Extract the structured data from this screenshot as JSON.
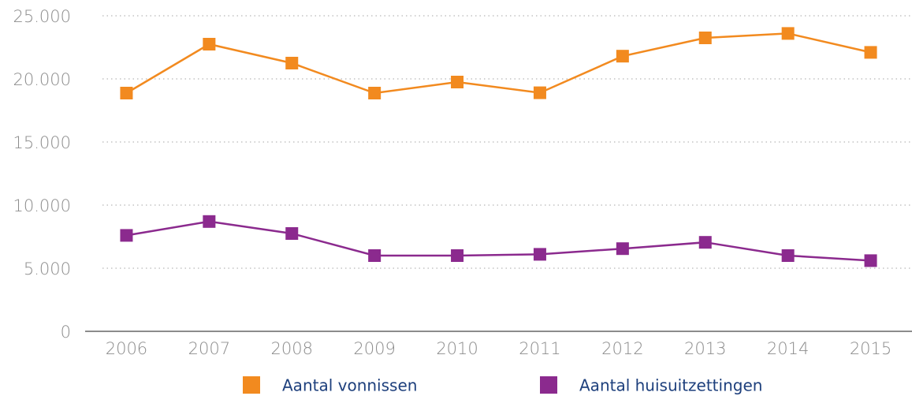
{
  "chart_data": {
    "type": "line",
    "categories": [
      "2006",
      "2007",
      "2008",
      "2009",
      "2010",
      "2011",
      "2012",
      "2013",
      "2014",
      "2015"
    ],
    "series": [
      {
        "name": "Aantal vonnissen",
        "color": "#f28a1f",
        "values": [
          18875,
          22750,
          21250,
          18875,
          19750,
          18900,
          21800,
          23250,
          23600,
          22100
        ]
      },
      {
        "name": "Aantal huisuitzettingen",
        "color": "#8b2a8e",
        "values": [
          7600,
          8700,
          7750,
          6000,
          6000,
          6100,
          6550,
          7050,
          6000,
          5600
        ]
      }
    ],
    "ylim": [
      0,
      25000
    ],
    "yticks": [
      0,
      {
        "value": 5000,
        "label": "5.000"
      },
      {
        "value": 10000,
        "label": "10.000"
      },
      {
        "value": 15000,
        "label": "15.000"
      },
      {
        "value": 20000,
        "label": "20.000"
      },
      {
        "value": 25000,
        "label": "25.000"
      }
    ],
    "grid": true
  }
}
